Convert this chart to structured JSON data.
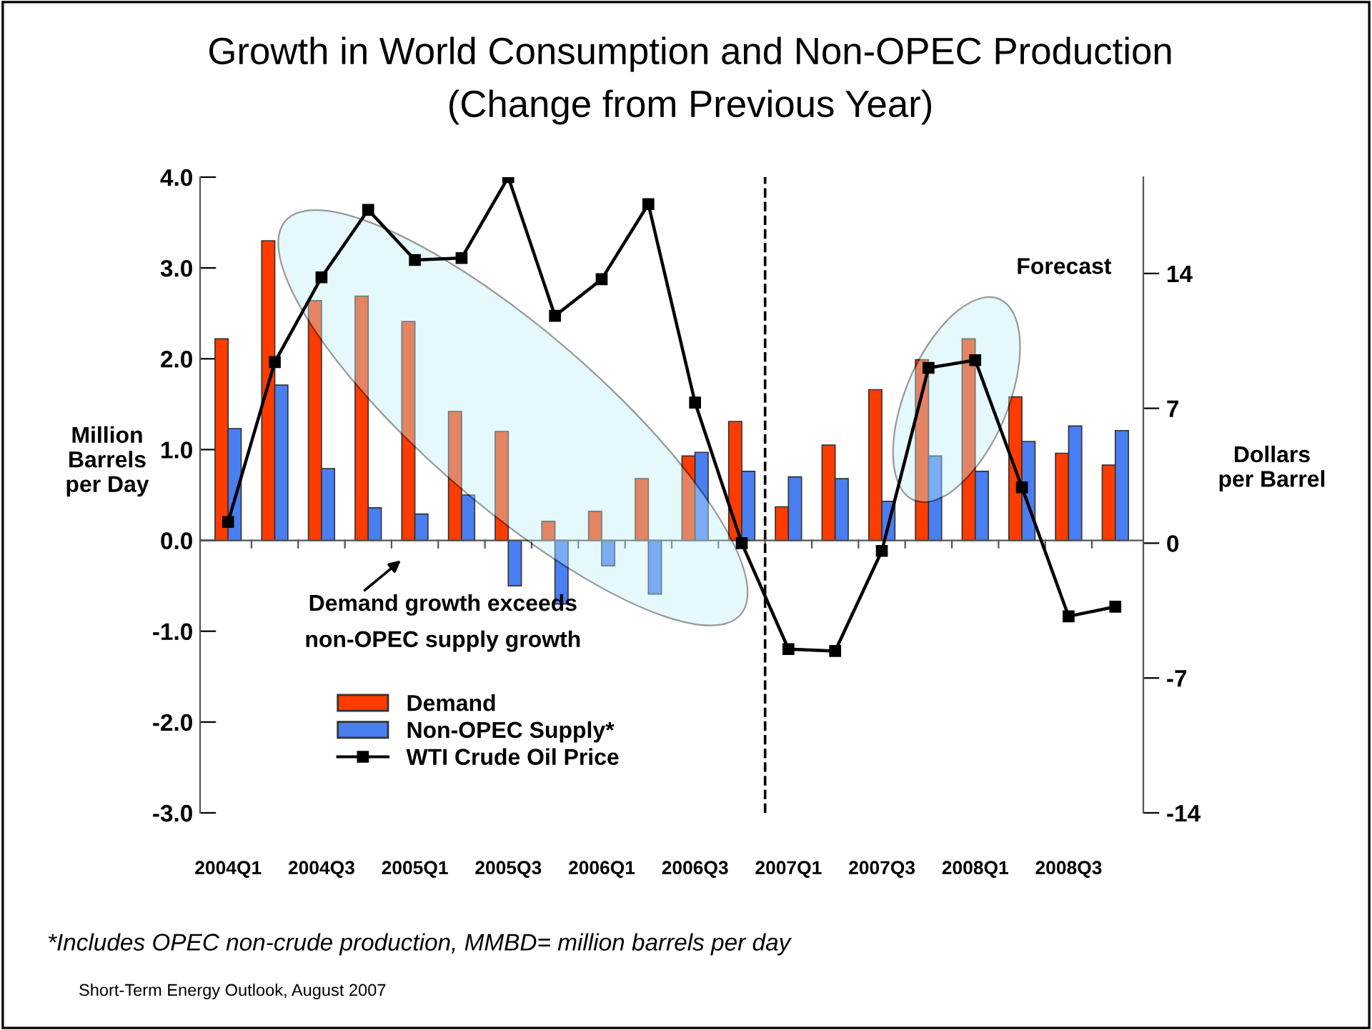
{
  "chart_data": {
    "type": "bar",
    "title": "Growth in World Consumption and Non-OPEC Production",
    "subtitle": "(Change from Previous Year)",
    "ylabel": "Million\nBarrels\nper Day",
    "y2label": "Dollars\nper Barrel",
    "categories": [
      "2004Q1",
      null,
      "2004Q3",
      null,
      "2005Q1",
      null,
      "2005Q3",
      null,
      "2006Q1",
      null,
      "2006Q3",
      null,
      "2007Q1",
      null,
      "2007Q3",
      null,
      "2008Q1",
      null,
      "2008Q3",
      null
    ],
    "series": [
      {
        "name": "Demand",
        "color": "#ff3c00",
        "values": [
          2.22,
          3.3,
          2.64,
          2.69,
          2.41,
          1.42,
          1.2,
          0.21,
          0.32,
          0.68,
          0.93,
          1.31,
          0.37,
          1.05,
          1.66,
          1.99,
          2.22,
          1.58,
          0.96,
          0.83
        ]
      },
      {
        "name": "Non-OPEC Supply*",
        "color": "#4a7ff2",
        "values": [
          1.23,
          1.71,
          0.79,
          0.36,
          0.29,
          0.5,
          -0.5,
          -0.7,
          -0.28,
          -0.59,
          0.97,
          0.76,
          0.7,
          0.68,
          0.43,
          0.93,
          0.76,
          1.09,
          1.26,
          1.21
        ]
      },
      {
        "name": "WTI Crude Oil Price",
        "type": "line",
        "axis": "y2",
        "color": "#000000",
        "marker": "square",
        "values": [
          1.1,
          9.4,
          13.8,
          17.3,
          14.7,
          14.8,
          19.0,
          11.8,
          13.7,
          17.6,
          7.3,
          0.0,
          -5.5,
          -5.6,
          -0.4,
          9.1,
          9.5,
          2.9,
          -3.8,
          -3.3
        ]
      }
    ],
    "ylim": [
      -3.0,
      4.0
    ],
    "yticks": [
      {
        "value": -3,
        "label": "-3.0"
      },
      {
        "value": -2,
        "label": "-2.0"
      },
      {
        "value": -1,
        "label": "-1.0"
      },
      {
        "value": 0,
        "label": "0.0"
      },
      {
        "value": 1,
        "label": "1.0"
      },
      {
        "value": 2,
        "label": "2.0"
      },
      {
        "value": 3,
        "label": "3.0"
      },
      {
        "value": 4,
        "label": "4.0"
      }
    ],
    "y2lim": [
      -14,
      19.0
    ],
    "y2ticks": [
      -14,
      -7,
      0,
      7,
      14
    ],
    "annotations": [
      "Demand growth exceeds\nnon-OPEC supply growth",
      "Forecast",
      "*Includes OPEC non-crude production, MMBD= million barrels per day",
      "Short-Term Energy Outlook, August 2007"
    ],
    "legend": "bottom left",
    "grid": false
  }
}
